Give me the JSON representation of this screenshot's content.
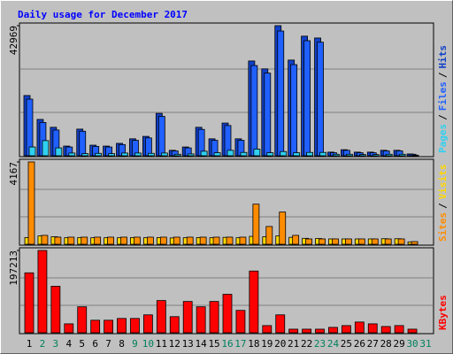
{
  "chart_data": {
    "type": "bar",
    "title": "Daily usage for December 2017",
    "categories": [
      "1",
      "2",
      "3",
      "4",
      "5",
      "6",
      "7",
      "8",
      "9",
      "10",
      "11",
      "12",
      "13",
      "14",
      "15",
      "16",
      "17",
      "18",
      "19",
      "20",
      "21",
      "22",
      "23",
      "24",
      "25",
      "26",
      "27",
      "28",
      "29",
      "30",
      "31"
    ],
    "category_colors": [
      "#000000",
      "#00805c",
      "#00805c",
      "#000000",
      "#000000",
      "#000000",
      "#000000",
      "#000000",
      "#00805c",
      "#00805c",
      "#000000",
      "#000000",
      "#000000",
      "#000000",
      "#000000",
      "#00805c",
      "#00805c",
      "#000000",
      "#000000",
      "#000000",
      "#000000",
      "#000000",
      "#00805c",
      "#00805c",
      "#000000",
      "#000000",
      "#000000",
      "#000000",
      "#000000",
      "#00805c",
      "#00805c"
    ],
    "legend_separator": "/",
    "panels": [
      {
        "ylim": [
          0,
          42969
        ],
        "yticks": [
          42969
        ],
        "series": [
          {
            "name": "Hits",
            "color": "#1040c8",
            "values": [
              19900,
              12000,
              9400,
              3200,
              8800,
              3500,
              3200,
              4100,
              5600,
              6400,
              14000,
              1800,
              2900,
              9400,
              5600,
              10800,
              5600,
              31300,
              28700,
              42969,
              31600,
              39500,
              38900,
              1200,
              2000,
              1200,
              1200,
              1800,
              1800,
              600,
              0
            ]
          },
          {
            "name": "Files",
            "color": "#2060ff",
            "values": [
              18700,
              11000,
              8500,
              2900,
              8100,
              3100,
              2900,
              3700,
              5100,
              5900,
              13000,
              1600,
              2600,
              8700,
              5100,
              10000,
              5100,
              29800,
              27300,
              41200,
              30100,
              38000,
              37500,
              1000,
              1800,
              1000,
              1000,
              1600,
              1600,
              500,
              0
            ]
          },
          {
            "name": "Pages",
            "color": "#30d0f0",
            "values": [
              2900,
              5000,
              2600,
              900,
              700,
              800,
              700,
              900,
              900,
              800,
              900,
              500,
              600,
              1500,
              1000,
              1800,
              1100,
              2200,
              1000,
              1400,
              1000,
              1100,
              1100,
              500,
              500,
              400,
              400,
              500,
              500,
              200,
              0
            ]
          }
        ]
      },
      {
        "ylim": [
          0,
          4167
        ],
        "yticks": [
          4167
        ],
        "series": [
          {
            "name": "Visits",
            "color": "#ffd800",
            "values": [
              340,
              420,
              380,
              330,
              340,
              330,
              330,
              330,
              340,
              330,
              340,
              320,
              330,
              340,
              330,
              350,
              330,
              400,
              380,
              420,
              350,
              300,
              290,
              270,
              270,
              270,
              270,
              280,
              280,
              120,
              0
            ]
          },
          {
            "name": "Sites",
            "color": "#ff8c00",
            "values": [
              4167,
              450,
              360,
              360,
              360,
              360,
              360,
              360,
              360,
              360,
              360,
              360,
              360,
              360,
              360,
              360,
              360,
              2030,
              900,
              1630,
              450,
              270,
              270,
              270,
              270,
              270,
              270,
              270,
              270,
              135,
              0
            ]
          }
        ]
      },
      {
        "ylim": [
          0,
          197213
        ],
        "yticks": [
          197213
        ],
        "series": [
          {
            "name": "KBytes",
            "color": "#ff0000",
            "values": [
              143600,
              197213,
              111500,
              21400,
              62200,
              30000,
              30000,
              34300,
              34300,
              42900,
              77200,
              38600,
              75000,
              62200,
              75000,
              92200,
              53600,
              147900,
              17200,
              42900,
              8600,
              8600,
              8600,
              12900,
              17200,
              25700,
              21400,
              15000,
              17200,
              8600,
              0
            ]
          }
        ]
      }
    ]
  }
}
